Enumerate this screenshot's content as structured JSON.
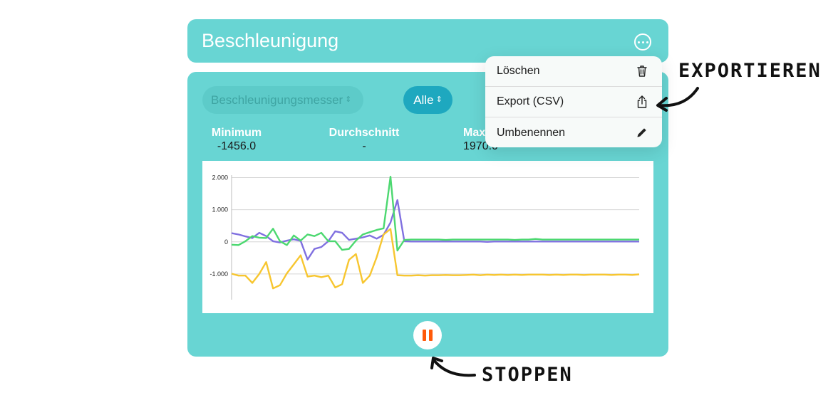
{
  "header": {
    "title": "Beschleunigung",
    "more_icon": "ellipsis-circle-icon"
  },
  "controls": {
    "sensor_select": "Beschleunigungsmesser",
    "axis_select": "Alle"
  },
  "stats": {
    "min_label": "Minimum",
    "min_value": "-1456.0",
    "avg_label": "Durchschnitt",
    "avg_value": "-",
    "max_label": "Max",
    "max_value": "1970.0"
  },
  "menu": {
    "items": [
      {
        "label": "Löschen",
        "icon": "trash-icon"
      },
      {
        "label": "Export (CSV)",
        "icon": "share-icon"
      },
      {
        "label": "Umbenennen",
        "icon": "pencil-icon"
      }
    ]
  },
  "annotations": {
    "export": "EXPORTIEREN",
    "stop": "STOPPEN"
  },
  "pause_icon": "pause-icon",
  "colors": {
    "card": "#68d5d3",
    "accent": "#1ea8bf",
    "pause": "#ff5a0a",
    "series_x": "#8070e0",
    "series_y": "#4cd870",
    "series_z": "#f7c630"
  },
  "chart_data": {
    "type": "line",
    "ylim": [
      -1800,
      2300
    ],
    "yticks": [
      -1000,
      0,
      1000,
      2000
    ],
    "ytick_labels": [
      "-1.000",
      "0",
      "1.000",
      "2.000"
    ],
    "grid": true,
    "series": [
      {
        "color": "#8070e0",
        "values": [
          270,
          230,
          170,
          120,
          280,
          180,
          20,
          -20,
          40,
          80,
          30,
          -550,
          -220,
          -160,
          20,
          330,
          280,
          60,
          100,
          140,
          200,
          100,
          220,
          600,
          1300,
          20,
          10,
          10,
          10,
          10,
          10,
          10,
          10,
          10,
          10,
          10,
          10,
          0,
          10,
          10,
          10,
          10,
          10,
          10,
          10,
          10,
          10,
          10,
          10,
          10,
          10,
          10,
          10,
          10,
          10,
          10,
          10,
          10,
          10,
          10
        ]
      },
      {
        "color": "#4cd870",
        "values": [
          -90,
          -100,
          20,
          180,
          130,
          120,
          410,
          20,
          -100,
          200,
          40,
          230,
          180,
          280,
          20,
          20,
          -250,
          -220,
          40,
          230,
          300,
          370,
          420,
          2030,
          -270,
          60,
          70,
          70,
          70,
          70,
          70,
          60,
          70,
          70,
          70,
          70,
          70,
          70,
          70,
          70,
          70,
          60,
          70,
          70,
          90,
          70,
          70,
          70,
          70,
          70,
          70,
          70,
          70,
          70,
          70,
          70,
          70,
          70,
          70,
          70
        ]
      },
      {
        "color": "#f7c630",
        "values": [
          -990,
          -1050,
          -1050,
          -1280,
          -1000,
          -630,
          -1450,
          -1350,
          -980,
          -700,
          -420,
          -1080,
          -1050,
          -1100,
          -1050,
          -1420,
          -1320,
          -560,
          -380,
          -1280,
          -1050,
          -480,
          230,
          400,
          -1040,
          -1050,
          -1050,
          -1040,
          -1050,
          -1040,
          -1040,
          -1030,
          -1040,
          -1040,
          -1030,
          -1020,
          -1040,
          -1020,
          -1030,
          -1020,
          -1030,
          -1020,
          -1030,
          -1020,
          -1020,
          -1020,
          -1030,
          -1020,
          -1030,
          -1020,
          -1020,
          -1030,
          -1020,
          -1020,
          -1020,
          -1030,
          -1020,
          -1020,
          -1030,
          -1010
        ]
      }
    ]
  }
}
